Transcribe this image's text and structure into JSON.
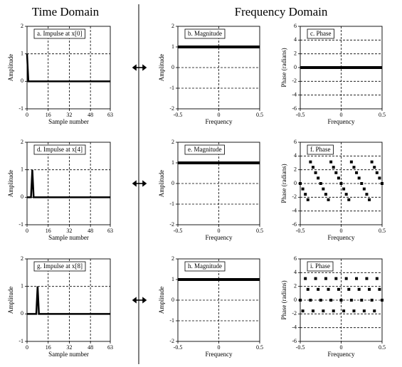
{
  "headers": {
    "time": "Time Domain",
    "frequency": "Frequency Domain"
  },
  "chart_data": [
    {
      "type": "line",
      "title": "a.  Impulse at x[0]",
      "x_label": "Sample number",
      "y_label": "Amplitude",
      "x": [
        0,
        1,
        2,
        3,
        4,
        5,
        6,
        7,
        8,
        9,
        10,
        11,
        12,
        13,
        14,
        15,
        16,
        17,
        18,
        19,
        20,
        21,
        22,
        23,
        24,
        25,
        26,
        27,
        28,
        29,
        30,
        31,
        32,
        33,
        34,
        35,
        36,
        37,
        38,
        39,
        40,
        41,
        42,
        43,
        44,
        45,
        46,
        47,
        48,
        49,
        50,
        51,
        52,
        53,
        54,
        55,
        56,
        57,
        58,
        59,
        60,
        61,
        62,
        63
      ],
      "values": [
        1,
        0,
        0,
        0,
        0,
        0,
        0,
        0,
        0,
        0,
        0,
        0,
        0,
        0,
        0,
        0,
        0,
        0,
        0,
        0,
        0,
        0,
        0,
        0,
        0,
        0,
        0,
        0,
        0,
        0,
        0,
        0,
        0,
        0,
        0,
        0,
        0,
        0,
        0,
        0,
        0,
        0,
        0,
        0,
        0,
        0,
        0,
        0,
        0,
        0,
        0,
        0,
        0,
        0,
        0,
        0,
        0,
        0,
        0,
        0,
        0,
        0,
        0,
        0
      ],
      "xlim": [
        0,
        63
      ],
      "ylim": [
        -1,
        2
      ],
      "xticks": [
        0,
        16,
        32,
        48,
        63
      ],
      "yticks": [
        -1,
        0,
        1,
        2
      ],
      "grid": true,
      "color": "#000000"
    },
    {
      "type": "line",
      "title": "b.  Magnitude",
      "x_label": "Frequency",
      "y_label": "Amplitude",
      "x": [
        -0.5,
        0.5
      ],
      "values": [
        1,
        1
      ],
      "xlim": [
        -0.5,
        0.5
      ],
      "ylim": [
        -2,
        2
      ],
      "xticks": [
        -0.5,
        0,
        0.5
      ],
      "yticks": [
        -2,
        -1,
        0,
        1,
        2
      ],
      "grid": true,
      "color": "#000000"
    },
    {
      "type": "line",
      "title": "c.  Phase",
      "x_label": "Frequency",
      "y_label": "Phase (radians)",
      "x": [
        -0.5,
        0.5
      ],
      "values": [
        0,
        0
      ],
      "xlim": [
        -0.5,
        0.5
      ],
      "ylim": [
        -6,
        6
      ],
      "xticks": [
        -0.5,
        0,
        0.5
      ],
      "yticks": [
        -6,
        -4,
        -2,
        0,
        2,
        4,
        6
      ],
      "grid": true,
      "color": "#000000"
    },
    {
      "type": "line",
      "title": "d.  Impulse at x[4]",
      "x_label": "Sample number",
      "y_label": "Amplitude",
      "x": [
        0,
        1,
        2,
        3,
        4,
        5,
        6,
        7,
        8,
        9,
        10,
        11,
        12,
        13,
        14,
        15,
        16,
        17,
        18,
        19,
        20,
        21,
        22,
        23,
        24,
        25,
        26,
        27,
        28,
        29,
        30,
        31,
        32,
        33,
        34,
        35,
        36,
        37,
        38,
        39,
        40,
        41,
        42,
        43,
        44,
        45,
        46,
        47,
        48,
        49,
        50,
        51,
        52,
        53,
        54,
        55,
        56,
        57,
        58,
        59,
        60,
        61,
        62,
        63
      ],
      "values": [
        0,
        0,
        0,
        0,
        1,
        0,
        0,
        0,
        0,
        0,
        0,
        0,
        0,
        0,
        0,
        0,
        0,
        0,
        0,
        0,
        0,
        0,
        0,
        0,
        0,
        0,
        0,
        0,
        0,
        0,
        0,
        0,
        0,
        0,
        0,
        0,
        0,
        0,
        0,
        0,
        0,
        0,
        0,
        0,
        0,
        0,
        0,
        0,
        0,
        0,
        0,
        0,
        0,
        0,
        0,
        0,
        0,
        0,
        0,
        0,
        0,
        0,
        0,
        0
      ],
      "xlim": [
        0,
        63
      ],
      "ylim": [
        -1,
        2
      ],
      "xticks": [
        0,
        16,
        32,
        48,
        63
      ],
      "yticks": [
        -1,
        0,
        1,
        2
      ],
      "grid": true,
      "color": "#000000"
    },
    {
      "type": "line",
      "title": "e.  Magnitude",
      "x_label": "Frequency",
      "y_label": "Amplitude",
      "x": [
        -0.5,
        0.5
      ],
      "values": [
        1,
        1
      ],
      "xlim": [
        -0.5,
        0.5
      ],
      "ylim": [
        -2,
        2
      ],
      "xticks": [
        -0.5,
        0,
        0.5
      ],
      "yticks": [
        -2,
        -1,
        0,
        1,
        2
      ],
      "grid": true,
      "color": "#000000"
    },
    {
      "type": "scatter",
      "title": "f.  Phase",
      "x_label": "Frequency",
      "y_label": "Phase (radians)",
      "x": [
        -0.5,
        -0.46875,
        -0.4375,
        -0.40625,
        -0.375,
        -0.34375,
        -0.3125,
        -0.28125,
        -0.25,
        -0.21875,
        -0.1875,
        -0.15625,
        -0.125,
        -0.09375,
        -0.0625,
        -0.03125,
        0,
        0.03125,
        0.0625,
        0.09375,
        0.125,
        0.15625,
        0.1875,
        0.21875,
        0.25,
        0.28125,
        0.3125,
        0.34375,
        0.375,
        0.40625,
        0.4375,
        0.46875,
        0.5
      ],
      "values": [
        0,
        -0.79,
        -1.57,
        -2.36,
        3.14,
        2.36,
        1.57,
        0.79,
        0,
        -0.79,
        -1.57,
        -2.36,
        3.14,
        2.36,
        1.57,
        0.79,
        0,
        -0.79,
        -1.57,
        -2.36,
        3.14,
        2.36,
        1.57,
        0.79,
        0,
        -0.79,
        -1.57,
        -2.36,
        3.14,
        2.36,
        1.57,
        0.79,
        0
      ],
      "xlim": [
        -0.5,
        0.5
      ],
      "ylim": [
        -6,
        6
      ],
      "xticks": [
        -0.5,
        0,
        0.5
      ],
      "yticks": [
        -6,
        -4,
        -2,
        0,
        2,
        4,
        6
      ],
      "grid": true,
      "color": "#000000"
    },
    {
      "type": "line",
      "title": "g.  Impulse at x[8]",
      "x_label": "Sample number",
      "y_label": "Amplitude",
      "x": [
        0,
        1,
        2,
        3,
        4,
        5,
        6,
        7,
        8,
        9,
        10,
        11,
        12,
        13,
        14,
        15,
        16,
        17,
        18,
        19,
        20,
        21,
        22,
        23,
        24,
        25,
        26,
        27,
        28,
        29,
        30,
        31,
        32,
        33,
        34,
        35,
        36,
        37,
        38,
        39,
        40,
        41,
        42,
        43,
        44,
        45,
        46,
        47,
        48,
        49,
        50,
        51,
        52,
        53,
        54,
        55,
        56,
        57,
        58,
        59,
        60,
        61,
        62,
        63
      ],
      "values": [
        0,
        0,
        0,
        0,
        0,
        0,
        0,
        0,
        1,
        0,
        0,
        0,
        0,
        0,
        0,
        0,
        0,
        0,
        0,
        0,
        0,
        0,
        0,
        0,
        0,
        0,
        0,
        0,
        0,
        0,
        0,
        0,
        0,
        0,
        0,
        0,
        0,
        0,
        0,
        0,
        0,
        0,
        0,
        0,
        0,
        0,
        0,
        0,
        0,
        0,
        0,
        0,
        0,
        0,
        0,
        0,
        0,
        0,
        0,
        0,
        0,
        0,
        0,
        0
      ],
      "xlim": [
        0,
        63
      ],
      "ylim": [
        -1,
        2
      ],
      "xticks": [
        0,
        16,
        32,
        48,
        63
      ],
      "yticks": [
        -1,
        0,
        1,
        2
      ],
      "grid": true,
      "color": "#000000"
    },
    {
      "type": "line",
      "title": "h.  Magnitude",
      "x_label": "Frequency",
      "y_label": "Amplitude",
      "x": [
        -0.5,
        0.5
      ],
      "values": [
        1,
        1
      ],
      "xlim": [
        -0.5,
        0.5
      ],
      "ylim": [
        -2,
        2
      ],
      "xticks": [
        -0.5,
        0,
        0.5
      ],
      "yticks": [
        -2,
        -1,
        0,
        1,
        2
      ],
      "grid": true,
      "color": "#000000"
    },
    {
      "type": "scatter",
      "title": "i.  Phase",
      "x_label": "Frequency",
      "y_label": "Phase (radians)",
      "x": [
        -0.5,
        -0.46875,
        -0.4375,
        -0.40625,
        -0.375,
        -0.34375,
        -0.3125,
        -0.28125,
        -0.25,
        -0.21875,
        -0.1875,
        -0.15625,
        -0.125,
        -0.09375,
        -0.0625,
        -0.03125,
        0,
        0.03125,
        0.0625,
        0.09375,
        0.125,
        0.15625,
        0.1875,
        0.21875,
        0.25,
        0.28125,
        0.3125,
        0.34375,
        0.375,
        0.40625,
        0.4375,
        0.46875,
        0.5
      ],
      "values": [
        0,
        -1.57,
        3.14,
        1.57,
        0,
        -1.57,
        3.14,
        1.57,
        0,
        -1.57,
        3.14,
        1.57,
        0,
        -1.57,
        3.14,
        1.57,
        0,
        -1.57,
        3.14,
        1.57,
        0,
        -1.57,
        3.14,
        1.57,
        0,
        -1.57,
        3.14,
        1.57,
        0,
        -1.57,
        3.14,
        1.57,
        0
      ],
      "xlim": [
        -0.5,
        0.5
      ],
      "ylim": [
        -6,
        6
      ],
      "xticks": [
        -0.5,
        0,
        0.5
      ],
      "yticks": [
        -6,
        -4,
        -2,
        0,
        2,
        4,
        6
      ],
      "grid": true,
      "color": "#000000"
    }
  ]
}
